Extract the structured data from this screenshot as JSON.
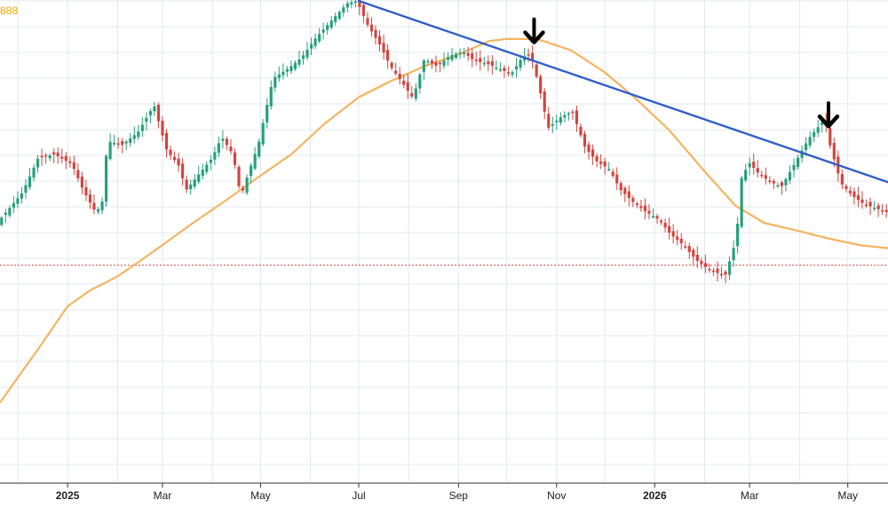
{
  "chart_data": {
    "type": "candlestick",
    "corner_label": "888",
    "x_tick_labels": [
      {
        "label": "2025",
        "date": "2025-01-01",
        "bold": true
      },
      {
        "label": "Mar",
        "date": "2025-03-01",
        "bold": false
      },
      {
        "label": "May",
        "date": "2025-05-01",
        "bold": false
      },
      {
        "label": "Jul",
        "date": "2025-07-01",
        "bold": false
      },
      {
        "label": "Sep",
        "date": "2025-09-01",
        "bold": false
      },
      {
        "label": "Nov",
        "date": "2025-11-01",
        "bold": false
      },
      {
        "label": "2026",
        "date": "2026-01-01",
        "bold": true
      },
      {
        "label": "Mar",
        "date": "2026-03-01",
        "bold": false
      },
      {
        "label": "May",
        "date": "2026-05-01",
        "bold": false
      }
    ],
    "xlim": [
      "2024-11-20",
      "2026-05-26"
    ],
    "ylim": [
      0,
      100
    ],
    "grid": true,
    "up_color": "#26a07a",
    "down_color": "#d2453f",
    "ma_color": "#f5b461",
    "trendline_color": "#2f5fc8",
    "reference_color": "#d9534f",
    "reference_level": 48.7,
    "price_path": [
      [
        "2024-11-20",
        57.1
      ],
      [
        "2024-12-05",
        62.7
      ],
      [
        "2024-12-15",
        69.5
      ],
      [
        "2024-12-25",
        70.2
      ],
      [
        "2025-01-05",
        68.3
      ],
      [
        "2025-01-12",
        63.2
      ],
      [
        "2025-01-20",
        58.8
      ],
      [
        "2025-01-24",
        61.2
      ],
      [
        "2025-01-27",
        72.8
      ],
      [
        "2025-02-05",
        72.0
      ],
      [
        "2025-02-15",
        74.5
      ],
      [
        "2025-02-25",
        79.8
      ],
      [
        "2025-03-01",
        75.2
      ],
      [
        "2025-03-05",
        70.9
      ],
      [
        "2025-03-12",
        68.3
      ],
      [
        "2025-03-17",
        63.3
      ],
      [
        "2025-03-25",
        66.4
      ],
      [
        "2025-04-02",
        69.4
      ],
      [
        "2025-04-08",
        73.6
      ],
      [
        "2025-04-15",
        70.2
      ],
      [
        "2025-04-20",
        62.0
      ],
      [
        "2025-04-25",
        66.9
      ],
      [
        "2025-05-01",
        72.3
      ],
      [
        "2025-05-05",
        78.1
      ],
      [
        "2025-05-10",
        85.0
      ],
      [
        "2025-05-20",
        87.0
      ],
      [
        "2025-05-28",
        89.1
      ],
      [
        "2025-06-05",
        92.6
      ],
      [
        "2025-06-15",
        96.1
      ],
      [
        "2025-06-25",
        99.5
      ],
      [
        "2025-07-01",
        100.0
      ],
      [
        "2025-07-08",
        95.2
      ],
      [
        "2025-07-15",
        91.7
      ],
      [
        "2025-07-22",
        87.3
      ],
      [
        "2025-07-30",
        83.8
      ],
      [
        "2025-08-05",
        81.1
      ],
      [
        "2025-08-12",
        88.7
      ],
      [
        "2025-08-20",
        87.3
      ],
      [
        "2025-08-28",
        89.4
      ],
      [
        "2025-09-05",
        90.1
      ],
      [
        "2025-09-12",
        88.4
      ],
      [
        "2025-09-20",
        87.8
      ],
      [
        "2025-09-27",
        86.9
      ],
      [
        "2025-10-05",
        85.8
      ],
      [
        "2025-10-12",
        89.1
      ],
      [
        "2025-10-17",
        89.7
      ],
      [
        "2025-10-22",
        83.8
      ],
      [
        "2025-10-28",
        75.3
      ],
      [
        "2025-11-05",
        77.5
      ],
      [
        "2025-11-12",
        78.5
      ],
      [
        "2025-11-20",
        71.5
      ],
      [
        "2025-11-27",
        68.9
      ],
      [
        "2025-12-05",
        67.3
      ],
      [
        "2025-12-12",
        63.3
      ],
      [
        "2025-12-20",
        60.9
      ],
      [
        "2025-12-28",
        59.0
      ],
      [
        "2026-01-05",
        57.5
      ],
      [
        "2026-01-12",
        54.7
      ],
      [
        "2026-01-20",
        52.6
      ],
      [
        "2026-01-28",
        49.7
      ],
      [
        "2026-02-05",
        47.8
      ],
      [
        "2026-02-15",
        46.6
      ],
      [
        "2026-02-22",
        53.8
      ],
      [
        "2026-02-25",
        65.5
      ],
      [
        "2026-03-02",
        68.6
      ],
      [
        "2026-03-08",
        66.4
      ],
      [
        "2026-03-15",
        64.9
      ],
      [
        "2026-03-22",
        63.9
      ],
      [
        "2026-03-30",
        68.3
      ],
      [
        "2026-04-08",
        73.3
      ],
      [
        "2026-04-18",
        77.1
      ],
      [
        "2026-04-20",
        73.3
      ],
      [
        "2026-04-28",
        64.6
      ],
      [
        "2026-05-05",
        62.2
      ],
      [
        "2026-05-12",
        60.6
      ],
      [
        "2026-05-20",
        59.7
      ],
      [
        "2026-05-26",
        59.0
      ]
    ],
    "ma_path": [
      [
        "2024-11-20",
        22.0
      ],
      [
        "2024-12-15",
        33.0
      ],
      [
        "2025-01-01",
        40.7
      ],
      [
        "2025-01-15",
        43.8
      ],
      [
        "2025-02-01",
        46.5
      ],
      [
        "2025-02-15",
        49.5
      ],
      [
        "2025-03-01",
        52.6
      ],
      [
        "2025-03-20",
        56.9
      ],
      [
        "2025-04-10",
        61.4
      ],
      [
        "2025-05-01",
        66.1
      ],
      [
        "2025-05-20",
        70.2
      ],
      [
        "2025-06-10",
        76.2
      ],
      [
        "2025-07-01",
        81.3
      ],
      [
        "2025-07-20",
        84.3
      ],
      [
        "2025-08-10",
        87.2
      ],
      [
        "2025-09-01",
        89.6
      ],
      [
        "2025-09-20",
        92.2
      ],
      [
        "2025-10-01",
        92.6
      ],
      [
        "2025-10-20",
        92.6
      ],
      [
        "2025-11-10",
        90.4
      ],
      [
        "2025-12-01",
        86.1
      ],
      [
        "2025-12-20",
        81.1
      ],
      [
        "2026-01-10",
        74.9
      ],
      [
        "2026-02-01",
        66.9
      ],
      [
        "2026-02-20",
        60.3
      ],
      [
        "2026-03-10",
        56.9
      ],
      [
        "2026-04-01",
        55.3
      ],
      [
        "2026-04-20",
        53.8
      ],
      [
        "2026-05-10",
        52.5
      ],
      [
        "2026-05-26",
        52.0
      ]
    ],
    "trendline": [
      [
        "2025-07-01",
        100.0
      ],
      [
        "2026-05-26",
        64.8
      ]
    ],
    "annotations": [
      {
        "type": "arrow-down",
        "date": "2025-10-18",
        "value": 89.9
      },
      {
        "type": "arrow-down",
        "date": "2026-04-19",
        "value": 73.6
      }
    ]
  }
}
